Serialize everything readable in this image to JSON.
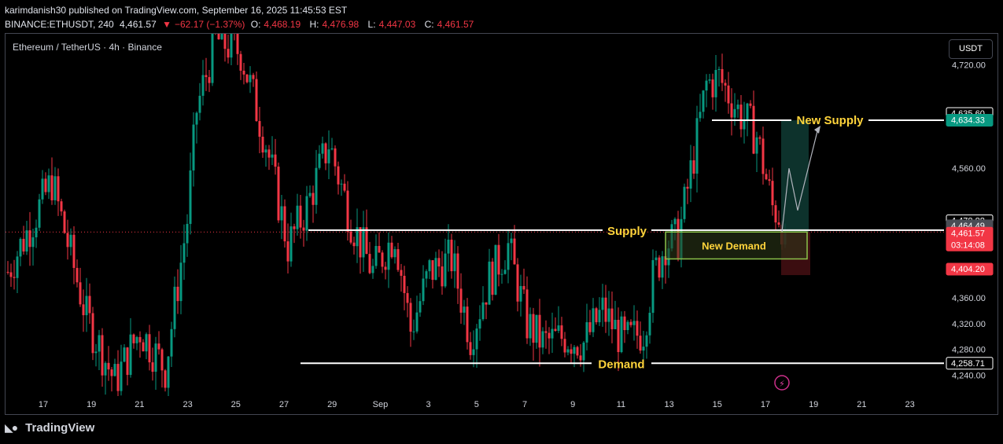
{
  "header": {
    "published": "karimdanish30 published on TradingView.com, September 16, 2025 11:45:53 EST",
    "symbol": "BINANCE:ETHUSDT, 240",
    "last": "4,461.57",
    "change": "−62.17 (−1.37%)",
    "o_label": "O:",
    "o": "4,468.19",
    "h_label": "H:",
    "h": "4,476.98",
    "l_label": "L:",
    "l": "4,447.03",
    "c_label": "C:",
    "c": "4,461.57"
  },
  "legend": "Ethereum / TetherUS · 4h · Binance",
  "currency_button": "USDT",
  "footer_brand": "TradingView",
  "colors": {
    "up": "#089981",
    "down": "#f23645",
    "annotation_text": "#ffd43b",
    "demand_box": "#8bc34a",
    "supply_box": "#0f3b34"
  },
  "chart_data": {
    "type": "candlestick",
    "y_axis": {
      "ylim": [
        4208,
        4768
      ],
      "ticks": [
        4720,
        4560,
        4360,
        4320,
        4280,
        4240
      ],
      "tick_labels": [
        "4,720.00",
        "4,560.00",
        "4,360.00",
        "4,320.00",
        "4,280.00",
        "4,240.00"
      ]
    },
    "x_axis": {
      "tick_labels": [
        "17",
        "19",
        "21",
        "23",
        "25",
        "27",
        "29",
        "Sep",
        "3",
        "5",
        "7",
        "9",
        "11",
        "13",
        "15",
        "17",
        "19",
        "21",
        "23"
      ]
    },
    "series": [
      {
        "name": "",
        "close_anchors": [
          [
            0,
            4400
          ],
          [
            14,
            4540
          ],
          [
            25,
            4330
          ],
          [
            34,
            4230
          ],
          [
            42,
            4310
          ],
          [
            50,
            4250
          ],
          [
            57,
            4480
          ],
          [
            60,
            4650
          ],
          [
            66,
            4760
          ],
          [
            74,
            4740
          ],
          [
            82,
            4600
          ],
          [
            89,
            4440
          ],
          [
            95,
            4500
          ],
          [
            102,
            4600
          ],
          [
            109,
            4480
          ],
          [
            116,
            4400
          ],
          [
            123,
            4460
          ],
          [
            128,
            4310
          ],
          [
            134,
            4400
          ],
          [
            141,
            4420
          ],
          [
            147,
            4300
          ],
          [
            153,
            4390
          ],
          [
            159,
            4440
          ],
          [
            165,
            4320
          ],
          [
            170,
            4290
          ],
          [
            177,
            4300
          ],
          [
            183,
            4290
          ],
          [
            189,
            4340
          ],
          [
            196,
            4290
          ],
          [
            202,
            4310
          ],
          [
            205,
            4390
          ],
          [
            209,
            4445
          ],
          [
            213,
            4450
          ],
          [
            218,
            4580
          ],
          [
            222,
            4690
          ],
          [
            226,
            4700
          ],
          [
            232,
            4650
          ],
          [
            238,
            4610
          ],
          [
            243,
            4500
          ],
          [
            245,
            4490
          ],
          [
            247,
            4461
          ]
        ]
      }
    ],
    "price_labels": [
      {
        "value": 4635.6,
        "label": "4,635.60",
        "style": "line"
      },
      {
        "value": 4634.33,
        "label": "4,634.33",
        "style": "teal"
      },
      {
        "value": 4478.88,
        "label": "4,478.88",
        "style": "line"
      },
      {
        "value": 4464.49,
        "label": "4,464.49",
        "style": "grey"
      },
      {
        "value": 4461.57,
        "label": "4,461.57",
        "style": "red",
        "sublabel": "03:14:08"
      },
      {
        "value": 4404.2,
        "label": "4,404.20",
        "style": "red"
      },
      {
        "value": 4258.71,
        "label": "4,258.71",
        "style": "line"
      }
    ],
    "annotations": [
      {
        "text": "New Supply",
        "price": 4634.33
      },
      {
        "text": "Supply",
        "price": 4464.49
      },
      {
        "text": "New Demand",
        "price": 4440
      },
      {
        "text": "Demand",
        "price": 4258.71
      }
    ],
    "levels": {
      "supply": 4464.49,
      "new_supply": 4634.33,
      "demand": 4258.71,
      "new_demand_top": 4461.57,
      "new_demand_bottom": 4420,
      "current": 4461.57
    }
  }
}
